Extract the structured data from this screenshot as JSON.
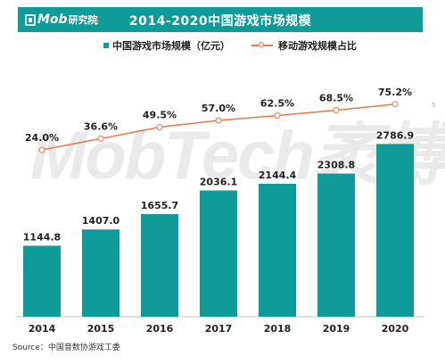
{
  "header": {
    "logo_text": "Mob",
    "logo_cn": "研究院",
    "title": "2014-2020中国游戏市场规模"
  },
  "legend": {
    "bar_label": "中国游戏市场规模（亿元）",
    "line_label": "移动游戏规模占比"
  },
  "watermark": "MobTech袤博",
  "source": "Source：中国音数协游戏工委",
  "page_number": "5",
  "colors": {
    "bar": "#0f9b98",
    "line": "#e07a4f",
    "header": "#0f9b98"
  },
  "chart_data": {
    "type": "bar",
    "title": "2014-2020中国游戏市场规模",
    "categories": [
      "2014",
      "2015",
      "2016",
      "2017",
      "2018",
      "2019",
      "2020"
    ],
    "series": [
      {
        "name": "中国游戏市场规模（亿元）",
        "type": "bar",
        "values": [
          1144.8,
          1407.0,
          1655.7,
          2036.1,
          2144.4,
          2308.8,
          2786.9
        ],
        "labels": [
          "1144.8",
          "1407.0",
          "1655.7",
          "2036.1",
          "2144.4",
          "2308.8",
          "2786.9"
        ]
      },
      {
        "name": "移动游戏规模占比",
        "type": "line",
        "values": [
          24.0,
          36.6,
          49.5,
          57.0,
          62.5,
          68.5,
          75.2
        ],
        "labels": [
          "24.0%",
          "36.6%",
          "49.5%",
          "57.0%",
          "62.5%",
          "68.5%",
          "75.2%"
        ]
      }
    ]
  }
}
